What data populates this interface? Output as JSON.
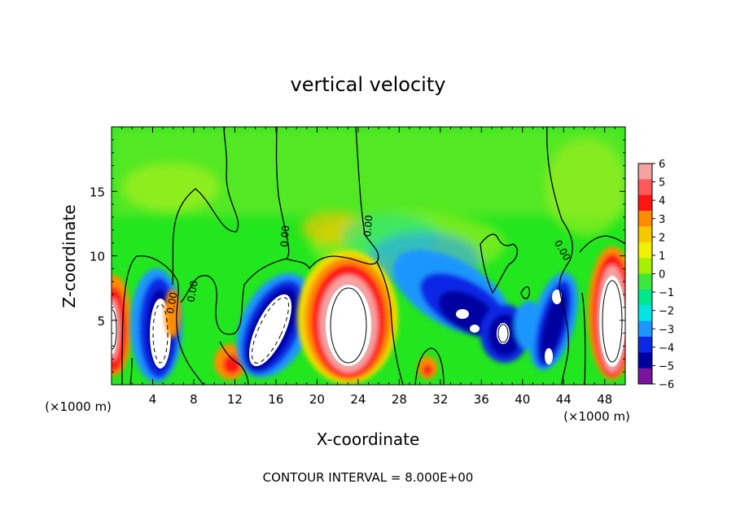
{
  "chart_data": {
    "type": "heatmap",
    "title": "vertical velocity",
    "xlabel": "X-coordinate",
    "ylabel": "Z-coordinate",
    "x_unit": "(×1000 m)",
    "x_unit_right": "(×1000 m)",
    "footer": "CONTOUR INTERVAL = 8.000E+00",
    "xlim": [
      0,
      50
    ],
    "ylim": [
      0,
      20
    ],
    "x_ticks": [
      4,
      8,
      12,
      16,
      20,
      24,
      28,
      32,
      36,
      40,
      44,
      48
    ],
    "y_ticks": [
      5,
      10,
      15
    ],
    "colorbar": {
      "levels": [
        6,
        5,
        4,
        3,
        2,
        1,
        0,
        -1,
        -2,
        -3,
        -4,
        -5,
        -6
      ],
      "colors": [
        "#f4a2a2",
        "#ff5a5a",
        "#ff1414",
        "#ff8c00",
        "#f5c800",
        "#f0f000",
        "#a6f000",
        "#3ce83c",
        "#00e68c",
        "#00e6e6",
        "#1e96ff",
        "#0a28e6",
        "#0000a0",
        "#7814a0"
      ]
    },
    "contour_labels": [
      {
        "text": "0.00",
        "x": 6.2,
        "z": 6.3,
        "angle": -80
      },
      {
        "text": "0.00",
        "x": 8.2,
        "z": 7.2,
        "angle": -80
      },
      {
        "text": "0.00",
        "x": 17.2,
        "z": 11.5,
        "angle": -85
      },
      {
        "text": "0.00",
        "x": 25.3,
        "z": 12.3,
        "angle": -85
      },
      {
        "text": "0.00",
        "x": 43.6,
        "z": 10.3,
        "angle": 60
      }
    ],
    "features": [
      {
        "kind": "updraft",
        "x": 0.5,
        "z": 5.0,
        "rx": 1.6,
        "rz": 3.0,
        "value": 6
      },
      {
        "kind": "downdraft",
        "x": 5.5,
        "z": 5.5,
        "rx": 1.8,
        "rz": 3.8,
        "value": -5
      },
      {
        "kind": "updraft",
        "x": 7.0,
        "z": 6.0,
        "rx": 1.0,
        "rz": 2.5,
        "value": 3
      },
      {
        "kind": "updraft",
        "x": 12.0,
        "z": 2.0,
        "rx": 1.0,
        "rz": 1.2,
        "value": 5
      },
      {
        "kind": "downdraft",
        "x": 16.5,
        "z": 5.5,
        "rx": 2.6,
        "rz": 3.8,
        "value": -5
      },
      {
        "kind": "updraft",
        "x": 23.5,
        "z": 6.0,
        "rx": 3.5,
        "rz": 4.8,
        "value": 6
      },
      {
        "kind": "updraft",
        "x": 30.5,
        "z": 1.5,
        "rx": 0.8,
        "rz": 1.0,
        "value": 4
      },
      {
        "kind": "downdraft",
        "x": 35.0,
        "z": 5.5,
        "rx": 4.5,
        "rz": 3.5,
        "value": -5
      },
      {
        "kind": "downdraft",
        "x": 39.0,
        "z": 4.0,
        "rx": 1.6,
        "rz": 2.0,
        "value": -5
      },
      {
        "kind": "downdraft",
        "x": 43.5,
        "z": 5.5,
        "rx": 1.8,
        "rz": 3.5,
        "value": -5
      },
      {
        "kind": "updraft",
        "x": 48.5,
        "z": 5.5,
        "rx": 2.4,
        "rz": 4.5,
        "value": 6
      }
    ]
  }
}
